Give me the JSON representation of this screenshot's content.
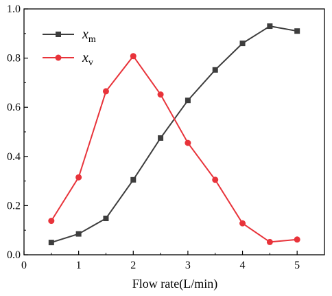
{
  "chart_data": {
    "type": "line",
    "title": "",
    "xlabel": "Flow rate(L/min)",
    "ylabel": "",
    "xlim": [
      0,
      5.5
    ],
    "ylim": [
      0,
      1.0
    ],
    "xticks": [
      0,
      1,
      2,
      3,
      4,
      5
    ],
    "yticks": [
      0.0,
      0.2,
      0.4,
      0.6,
      0.8,
      1.0
    ],
    "xtick_labels": [
      "0",
      "1",
      "2",
      "3",
      "4",
      "5"
    ],
    "ytick_labels": [
      "0.0",
      "0.2",
      "0.4",
      "0.6",
      "0.8",
      "1.0"
    ],
    "grid": false,
    "legend_position": "top-left",
    "x": [
      0.5,
      1.0,
      1.5,
      2.0,
      2.5,
      3.0,
      3.5,
      4.0,
      4.5,
      5.0
    ],
    "series": [
      {
        "name": "x",
        "name_sub": "m",
        "color": "#3d3d3d",
        "marker": "square",
        "values": [
          0.05,
          0.085,
          0.148,
          0.305,
          0.475,
          0.628,
          0.752,
          0.86,
          0.93,
          0.91
        ]
      },
      {
        "name": "x",
        "name_sub": "v",
        "color": "#e8333a",
        "marker": "circle",
        "values": [
          0.138,
          0.315,
          0.665,
          0.808,
          0.652,
          0.455,
          0.305,
          0.128,
          0.052,
          0.062
        ]
      }
    ]
  }
}
